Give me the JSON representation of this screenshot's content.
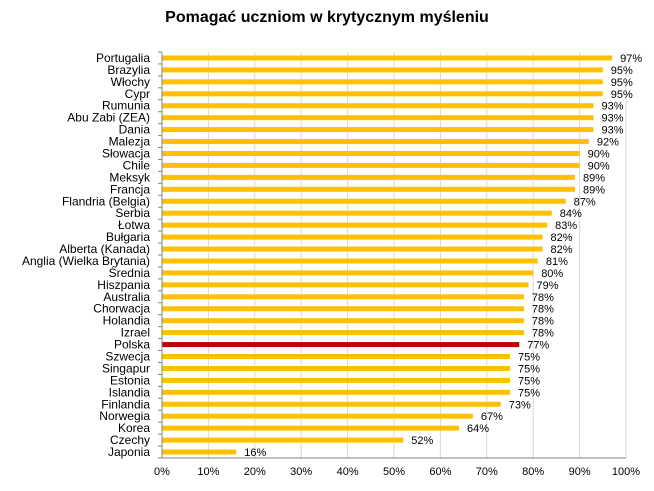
{
  "chart_data": {
    "type": "bar",
    "orientation": "horizontal",
    "title": "Pomagać uczniom w krytycznym myśleniu",
    "xlim": [
      0,
      100
    ],
    "x_ticks": [
      "0%",
      "10%",
      "20%",
      "30%",
      "40%",
      "50%",
      "60%",
      "70%",
      "80%",
      "90%",
      "100%"
    ],
    "grid": true,
    "categories": [
      "Portugalia",
      "Brazylia",
      "Włochy",
      "Cypr",
      "Rumunia",
      "Abu Zabi (ZEA)",
      "Dania",
      "Malezja",
      "Słowacja",
      "Chile",
      "Meksyk",
      "Francja",
      "Flandria (Belgia)",
      "Serbia",
      "Łotwa",
      "Bułgaria",
      "Alberta (Kanada)",
      "Anglia (Wielka Brytania)",
      "Średnia",
      "Hiszpania",
      "Australia",
      "Chorwacja",
      "Holandia",
      "Izrael",
      "Polska",
      "Szwecja",
      "Singapur",
      "Estonia",
      "Islandia",
      "Finlandia",
      "Norwegia",
      "Korea",
      "Czechy",
      "Japonia"
    ],
    "values": [
      97,
      95,
      95,
      95,
      93,
      93,
      93,
      92,
      90,
      90,
      89,
      89,
      87,
      84,
      83,
      82,
      82,
      81,
      80,
      79,
      78,
      78,
      78,
      78,
      77,
      75,
      75,
      75,
      75,
      73,
      67,
      64,
      52,
      16
    ],
    "value_labels": [
      "97%",
      "95%",
      "95%",
      "95%",
      "93%",
      "93%",
      "93%",
      "92%",
      "90%",
      "90%",
      "89%",
      "89%",
      "87%",
      "84%",
      "83%",
      "82%",
      "82%",
      "81%",
      "80%",
      "79%",
      "78%",
      "78%",
      "78%",
      "78%",
      "77%",
      "75%",
      "75%",
      "75%",
      "75%",
      "73%",
      "67%",
      "64%",
      "52%",
      "16%"
    ],
    "highlight_category": "Polska",
    "colors": {
      "bar": "#FFC000",
      "highlight": "#C00000",
      "grid": "#d9d9d9",
      "axis": "#868686"
    }
  }
}
